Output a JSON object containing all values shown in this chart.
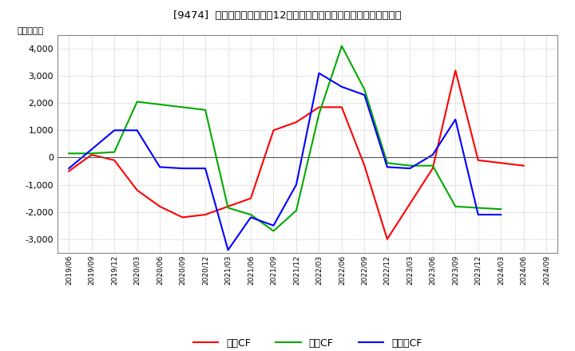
{
  "title": "[9474]  キャッシュフローの12か月移動合計の対前年同期増減額の推移",
  "ylabel": "（百万円）",
  "background_color": "#ffffff",
  "plot_bg_color": "#ffffff",
  "grid_color": "#bbbbbb",
  "xlabels": [
    "2019/06",
    "2019/09",
    "2019/12",
    "2020/03",
    "2020/06",
    "2020/09",
    "2020/12",
    "2021/03",
    "2021/06",
    "2021/09",
    "2021/12",
    "2022/03",
    "2022/06",
    "2022/09",
    "2022/12",
    "2023/03",
    "2023/06",
    "2023/09",
    "2023/12",
    "2024/03",
    "2024/06",
    "2024/09"
  ],
  "operating_cf": [
    -500,
    100,
    -100,
    -1200,
    -1800,
    -2200,
    -2100,
    -1800,
    -1500,
    1000,
    1300,
    1850,
    1850,
    -300,
    -3000,
    -1700,
    -400,
    3200,
    -100,
    -200,
    -300,
    null
  ],
  "investing_cf": [
    150,
    150,
    200,
    2050,
    1950,
    1850,
    1750,
    -1850,
    -2100,
    -2700,
    -1950,
    1600,
    4100,
    2500,
    -200,
    -300,
    -300,
    -1800,
    -1850,
    -1900,
    null,
    null
  ],
  "free_cf": [
    -400,
    300,
    1000,
    1000,
    -350,
    -400,
    -400,
    -3400,
    -2200,
    -2500,
    -1000,
    3100,
    2600,
    2300,
    -350,
    -400,
    100,
    1400,
    -2100,
    -2100,
    null,
    null
  ],
  "operating_color": "#ff0000",
  "investing_color": "#00aa00",
  "free_color": "#0000ff",
  "ylim": [
    -3500,
    4500
  ],
  "yticks": [
    -3000,
    -2000,
    -1000,
    0,
    1000,
    2000,
    3000,
    4000
  ],
  "legend_labels": [
    "営業CF",
    "投資CF",
    "フリーCF"
  ]
}
